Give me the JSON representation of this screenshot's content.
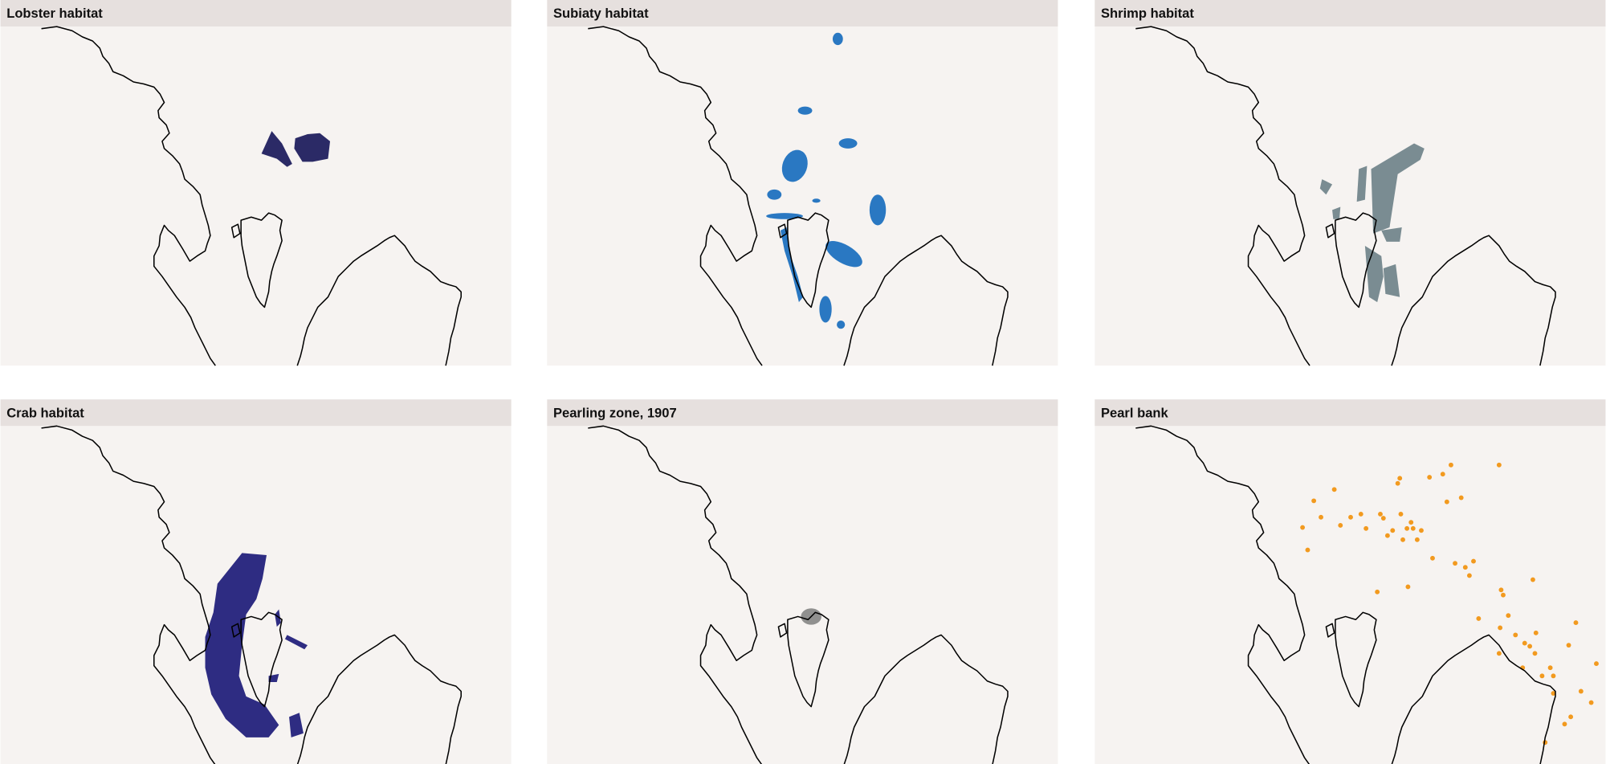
{
  "panels": [
    {
      "title": "Lobster habitat"
    },
    {
      "title": "Subiaty habitat"
    },
    {
      "title": "Shrimp habitat"
    },
    {
      "title": "Crab habitat"
    },
    {
      "title": "Pearling zone, 1907"
    },
    {
      "title": "Pearl bank"
    }
  ]
}
